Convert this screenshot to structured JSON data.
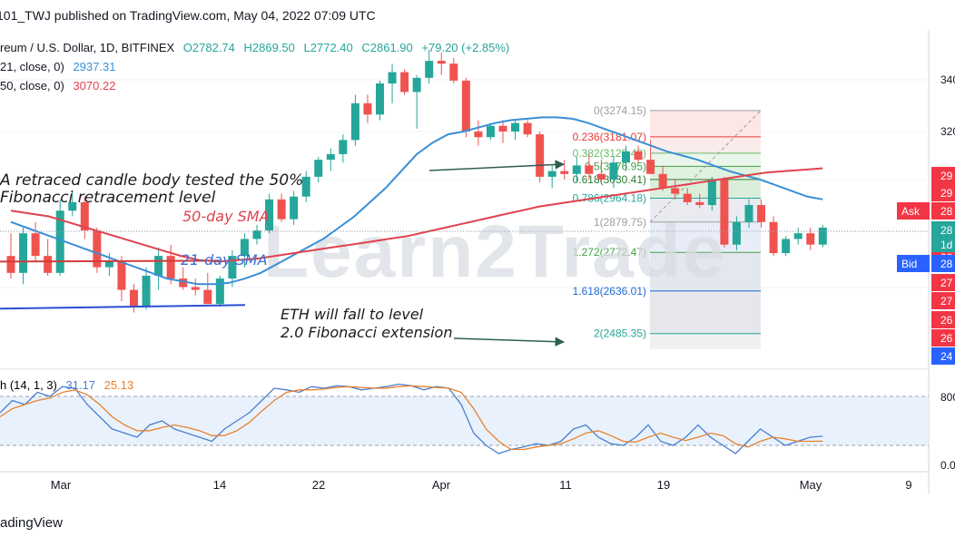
{
  "header": {
    "publisher": "101_TWJ published on TradingView.com, May 04, 2022 07:09 UTC"
  },
  "legend": {
    "symbol": "reum / U.S. Dollar, 1D, BITFINEX",
    "open": "O2782.74",
    "high": "H2869.50",
    "low": "L2772.40",
    "close": "C2861.90",
    "change": "+79.20 (+2.85%)",
    "sma21_label": "21, close, 0)",
    "sma21_value": "2937.31",
    "sma50_label": "50, close, 0)",
    "sma50_value": "3070.22"
  },
  "oscillator": {
    "label": "h (14, 1, 3)",
    "k_value": "31.17",
    "d_value": "25.13",
    "axis_top": "800",
    "axis_bottom": "0.0"
  },
  "annotations": {
    "retrace_line1": "A retraced candle body tested the 50%",
    "retrace_line2": "Fibonacci retracement level",
    "sma50": "50-day SMA",
    "sma21": "21-day SMA",
    "fall_line1": "ETH will fall to level",
    "fall_line2": "2.0 Fibonacci extension"
  },
  "watermark": "Learn2Trade",
  "price_axis": {
    "ticks": [
      "340",
      "320"
    ],
    "ask_label": "Ask",
    "bid_label": "Bid",
    "red_labels": [
      "29",
      "29",
      "28",
      "27",
      "27",
      "26",
      "26"
    ],
    "ask_price": "28",
    "bid_price": "28",
    "current_price": "28",
    "countdown": "1d",
    "blue_label": "24"
  },
  "time_axis": {
    "labels": [
      "Mar",
      "14",
      "22",
      "Apr",
      "11",
      "19",
      "May",
      "9"
    ]
  },
  "footer": {
    "brand": "adingView"
  },
  "colors": {
    "up": "#26a69a",
    "down": "#ef5350",
    "sma21": "#3a8fd6",
    "sma50": "#e0424e",
    "support": "#2a4fd1",
    "stochK": "#4a7fd0",
    "stochD": "#e8812e",
    "arrow": "#2e5e52",
    "fib_red": "#e53935",
    "fib_green": "#43a047",
    "fib_blue": "#1e6ad6"
  },
  "chart_data": {
    "type": "candlestick",
    "title": "",
    "xlabel": "",
    "ylabel": "",
    "ylim": [
      2350,
      3500
    ],
    "candles": [
      {
        "o": 2760,
        "h": 2840,
        "l": 2680,
        "c": 2700
      },
      {
        "o": 2700,
        "h": 2860,
        "l": 2660,
        "c": 2840
      },
      {
        "o": 2840,
        "h": 2880,
        "l": 2740,
        "c": 2760
      },
      {
        "o": 2760,
        "h": 2820,
        "l": 2690,
        "c": 2700
      },
      {
        "o": 2700,
        "h": 2960,
        "l": 2690,
        "c": 2920
      },
      {
        "o": 2920,
        "h": 2990,
        "l": 2900,
        "c": 2950
      },
      {
        "o": 2950,
        "h": 2970,
        "l": 2820,
        "c": 2850
      },
      {
        "o": 2850,
        "h": 2860,
        "l": 2700,
        "c": 2720
      },
      {
        "o": 2720,
        "h": 2770,
        "l": 2690,
        "c": 2740
      },
      {
        "o": 2740,
        "h": 2760,
        "l": 2600,
        "c": 2640
      },
      {
        "o": 2640,
        "h": 2660,
        "l": 2560,
        "c": 2580
      },
      {
        "o": 2580,
        "h": 2720,
        "l": 2570,
        "c": 2690
      },
      {
        "o": 2690,
        "h": 2790,
        "l": 2640,
        "c": 2760
      },
      {
        "o": 2760,
        "h": 2800,
        "l": 2660,
        "c": 2680
      },
      {
        "o": 2680,
        "h": 2720,
        "l": 2640,
        "c": 2650
      },
      {
        "o": 2650,
        "h": 2680,
        "l": 2620,
        "c": 2640
      },
      {
        "o": 2640,
        "h": 2700,
        "l": 2590,
        "c": 2590
      },
      {
        "o": 2590,
        "h": 2690,
        "l": 2580,
        "c": 2680
      },
      {
        "o": 2680,
        "h": 2780,
        "l": 2650,
        "c": 2760
      },
      {
        "o": 2760,
        "h": 2840,
        "l": 2720,
        "c": 2820
      },
      {
        "o": 2820,
        "h": 2870,
        "l": 2800,
        "c": 2850
      },
      {
        "o": 2850,
        "h": 2980,
        "l": 2840,
        "c": 2960
      },
      {
        "o": 2960,
        "h": 2980,
        "l": 2880,
        "c": 2890
      },
      {
        "o": 2890,
        "h": 2990,
        "l": 2870,
        "c": 2970
      },
      {
        "o": 2970,
        "h": 3060,
        "l": 2950,
        "c": 3040
      },
      {
        "o": 3040,
        "h": 3110,
        "l": 3020,
        "c": 3100
      },
      {
        "o": 3100,
        "h": 3140,
        "l": 3060,
        "c": 3120
      },
      {
        "o": 3120,
        "h": 3190,
        "l": 3090,
        "c": 3170
      },
      {
        "o": 3170,
        "h": 3330,
        "l": 3150,
        "c": 3300
      },
      {
        "o": 3300,
        "h": 3330,
        "l": 3230,
        "c": 3260
      },
      {
        "o": 3260,
        "h": 3380,
        "l": 3240,
        "c": 3370
      },
      {
        "o": 3370,
        "h": 3440,
        "l": 3300,
        "c": 3410
      },
      {
        "o": 3410,
        "h": 3420,
        "l": 3330,
        "c": 3340
      },
      {
        "o": 3340,
        "h": 3400,
        "l": 3210,
        "c": 3390
      },
      {
        "o": 3390,
        "h": 3490,
        "l": 3370,
        "c": 3450
      },
      {
        "o": 3450,
        "h": 3480,
        "l": 3400,
        "c": 3440
      },
      {
        "o": 3440,
        "h": 3460,
        "l": 3370,
        "c": 3380
      },
      {
        "o": 3380,
        "h": 3390,
        "l": 3180,
        "c": 3200
      },
      {
        "o": 3200,
        "h": 3240,
        "l": 3150,
        "c": 3180
      },
      {
        "o": 3180,
        "h": 3230,
        "l": 3170,
        "c": 3220
      },
      {
        "o": 3220,
        "h": 3240,
        "l": 3160,
        "c": 3200
      },
      {
        "o": 3200,
        "h": 3240,
        "l": 3170,
        "c": 3230
      },
      {
        "o": 3230,
        "h": 3240,
        "l": 3180,
        "c": 3190
      },
      {
        "o": 3190,
        "h": 3200,
        "l": 3020,
        "c": 3040
      },
      {
        "o": 3040,
        "h": 3080,
        "l": 3000,
        "c": 3060
      },
      {
        "o": 3060,
        "h": 3100,
        "l": 3030,
        "c": 3050
      },
      {
        "o": 3050,
        "h": 3110,
        "l": 3020,
        "c": 3080
      },
      {
        "o": 3080,
        "h": 3120,
        "l": 3030,
        "c": 3050
      },
      {
        "o": 3050,
        "h": 3100,
        "l": 3020,
        "c": 3030
      },
      {
        "o": 3030,
        "h": 3110,
        "l": 3000,
        "c": 3090
      },
      {
        "o": 3090,
        "h": 3150,
        "l": 3060,
        "c": 3130
      },
      {
        "o": 3130,
        "h": 3150,
        "l": 3090,
        "c": 3100
      },
      {
        "o": 3100,
        "h": 3170,
        "l": 3050,
        "c": 3050
      },
      {
        "o": 3050,
        "h": 3080,
        "l": 2990,
        "c": 3000
      },
      {
        "o": 3000,
        "h": 3030,
        "l": 2960,
        "c": 2980
      },
      {
        "o": 2980,
        "h": 3000,
        "l": 2940,
        "c": 2950
      },
      {
        "o": 2950,
        "h": 2980,
        "l": 2930,
        "c": 2940
      },
      {
        "o": 2940,
        "h": 3040,
        "l": 2920,
        "c": 3030
      },
      {
        "o": 3030,
        "h": 3040,
        "l": 2790,
        "c": 2800
      },
      {
        "o": 2800,
        "h": 2900,
        "l": 2780,
        "c": 2880
      },
      {
        "o": 2880,
        "h": 2960,
        "l": 2860,
        "c": 2940
      },
      {
        "o": 2940,
        "h": 2960,
        "l": 2860,
        "c": 2880
      },
      {
        "o": 2880,
        "h": 2900,
        "l": 2760,
        "c": 2770
      },
      {
        "o": 2770,
        "h": 2830,
        "l": 2760,
        "c": 2820
      },
      {
        "o": 2820,
        "h": 2860,
        "l": 2800,
        "c": 2840
      },
      {
        "o": 2840,
        "h": 2860,
        "l": 2780,
        "c": 2800
      },
      {
        "o": 2800,
        "h": 2870,
        "l": 2790,
        "c": 2860
      }
    ],
    "fib_levels": [
      {
        "ratio": "0",
        "price": 3274.15,
        "label": "0(3274.15)",
        "color": "#9e9e9e"
      },
      {
        "ratio": "0.236",
        "price": 3181.07,
        "label": "0.236(3181.07)",
        "color": "#e53935"
      },
      {
        "ratio": "0.382",
        "price": 3123.49,
        "label": "0.382(3123.49)",
        "color": "#66bb6a"
      },
      {
        "ratio": "0.5",
        "price": 3076.95,
        "label": "0.5(3076.95)",
        "color": "#43a047"
      },
      {
        "ratio": "0.618",
        "price": 3030.41,
        "label": "0.618(3030.41)",
        "color": "#2e7d32"
      },
      {
        "ratio": "0.786",
        "price": 2964.18,
        "label": "0.786(2964.18)",
        "color": "#26a69a"
      },
      {
        "ratio": "1",
        "price": 2879.75,
        "label": "1(2879.75)",
        "color": "#9e9e9e"
      },
      {
        "ratio": "1.272",
        "price": 2772.47,
        "label": "1.272(2772.47)",
        "color": "#43a047"
      },
      {
        "ratio": "1.618",
        "price": 2636.01,
        "label": "1.618(2636.01)",
        "color": "#1e6ad6"
      },
      {
        "ratio": "2",
        "price": 2485.35,
        "label": "2(2485.35)",
        "color": "#26a69a"
      }
    ],
    "sma21": [
      2880,
      2860,
      2840,
      2820,
      2800,
      2780,
      2760,
      2740,
      2720,
      2700,
      2680,
      2670,
      2660,
      2660,
      2665,
      2680,
      2700,
      2730,
      2760,
      2790,
      2820,
      2860,
      2900,
      2950,
      3000,
      3060,
      3120,
      3160,
      3190,
      3200,
      3215,
      3230,
      3240,
      3245,
      3250,
      3250,
      3245,
      3230,
      3210,
      3190,
      3170,
      3150,
      3130,
      3115,
      3100,
      3080,
      3060,
      3045,
      3030,
      3010,
      2990,
      2970,
      2960
    ],
    "sma50": [
      2920,
      2910,
      2900,
      2880,
      2860,
      2840,
      2820,
      2800,
      2780,
      2760,
      2745,
      2740,
      2745,
      2750,
      2760,
      2770,
      2780,
      2790,
      2800,
      2810,
      2820,
      2830,
      2845,
      2860,
      2875,
      2890,
      2905,
      2920,
      2935,
      2945,
      2955,
      2965,
      2975,
      2985,
      2995,
      3005,
      3015,
      3025,
      3035,
      3045,
      3055,
      3060,
      3065,
      3070
    ],
    "stochastic": {
      "k": [
        60,
        75,
        70,
        85,
        80,
        92,
        90,
        70,
        55,
        40,
        35,
        30,
        45,
        50,
        40,
        35,
        30,
        25,
        40,
        50,
        60,
        75,
        90,
        88,
        85,
        92,
        90,
        93,
        92,
        88,
        90,
        92,
        95,
        93,
        88,
        92,
        90,
        70,
        35,
        20,
        10,
        15,
        18,
        22,
        20,
        25,
        40,
        45,
        30,
        22,
        20,
        30,
        45,
        25,
        20,
        30,
        45,
        30,
        20,
        10,
        25,
        40,
        30,
        20,
        25,
        30,
        31.17
      ],
      "d": [
        55,
        65,
        70,
        75,
        78,
        85,
        88,
        82,
        70,
        55,
        45,
        38,
        38,
        42,
        45,
        42,
        38,
        32,
        32,
        38,
        48,
        62,
        75,
        85,
        88,
        88,
        89,
        91,
        92,
        91,
        90,
        90,
        92,
        93,
        92,
        91,
        90,
        85,
        65,
        40,
        25,
        15,
        15,
        18,
        20,
        22,
        28,
        35,
        38,
        32,
        25,
        24,
        30,
        35,
        30,
        26,
        30,
        35,
        32,
        22,
        18,
        25,
        30,
        28,
        25,
        25,
        25.13
      ]
    },
    "support_line": 2580,
    "resistance_line": 2740
  }
}
